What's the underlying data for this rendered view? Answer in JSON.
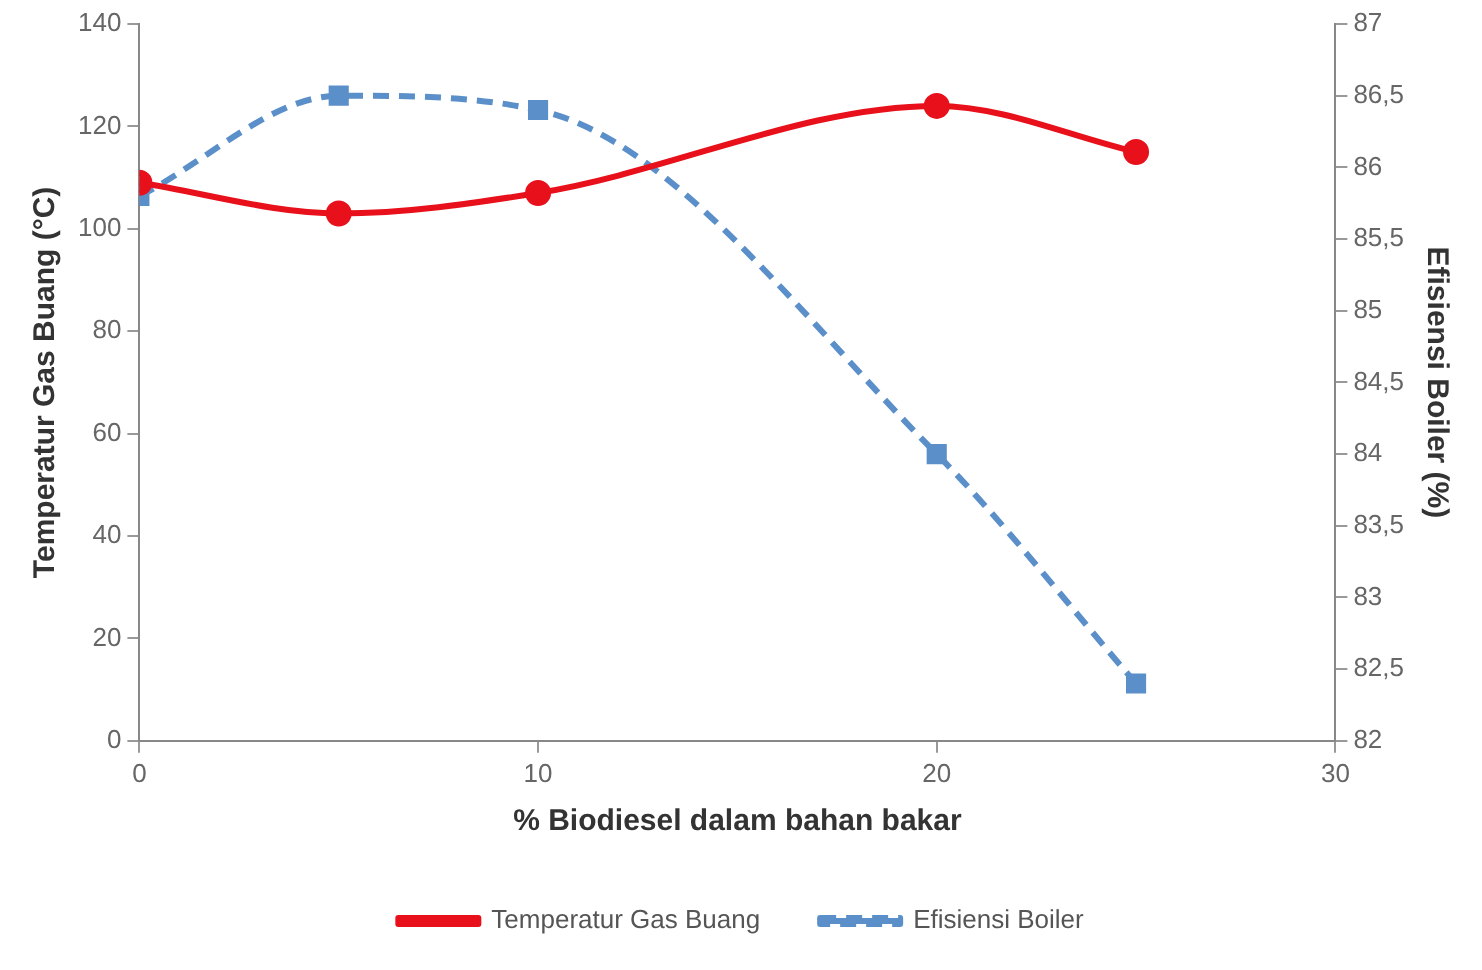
{
  "chart_data": {
    "type": "line",
    "x": [
      0,
      5,
      10,
      20,
      25
    ],
    "xlabel": "% Biodiesel dalam bahan bakar",
    "ylabel": "Temperatur Gas Buang (°C)",
    "y2label": "Efisiensi Boiler (%)",
    "xlim": [
      0,
      30
    ],
    "xticks": [
      0,
      10,
      20,
      30
    ],
    "ylim": [
      0,
      140
    ],
    "yticks": [
      0,
      20,
      40,
      60,
      80,
      100,
      120,
      140
    ],
    "y2lim": [
      82,
      87
    ],
    "y2ticks": [
      82,
      {
        "value": 82.5,
        "label": "82,5"
      },
      83,
      {
        "value": 83.5,
        "label": "83,5"
      },
      84,
      {
        "value": 84.5,
        "label": "84,5"
      },
      85,
      {
        "value": 85.5,
        "label": "85,5"
      },
      86,
      {
        "value": 86.5,
        "label": "86,5"
      },
      87
    ],
    "series": [
      {
        "name": "Temperatur Gas Buang",
        "color": "#e8101a",
        "values": [
          109,
          103,
          107,
          124,
          115
        ],
        "marker": "circle",
        "line_style": "solid"
      },
      {
        "name": "Efisiensi Boiler",
        "color": "#5b8fc9",
        "values": [
          85.8,
          86.5,
          86.4,
          84.0,
          82.4
        ],
        "axis": "y2",
        "marker": "square",
        "line_style": "dashed"
      }
    ],
    "grid": false,
    "legend": "bottom"
  }
}
